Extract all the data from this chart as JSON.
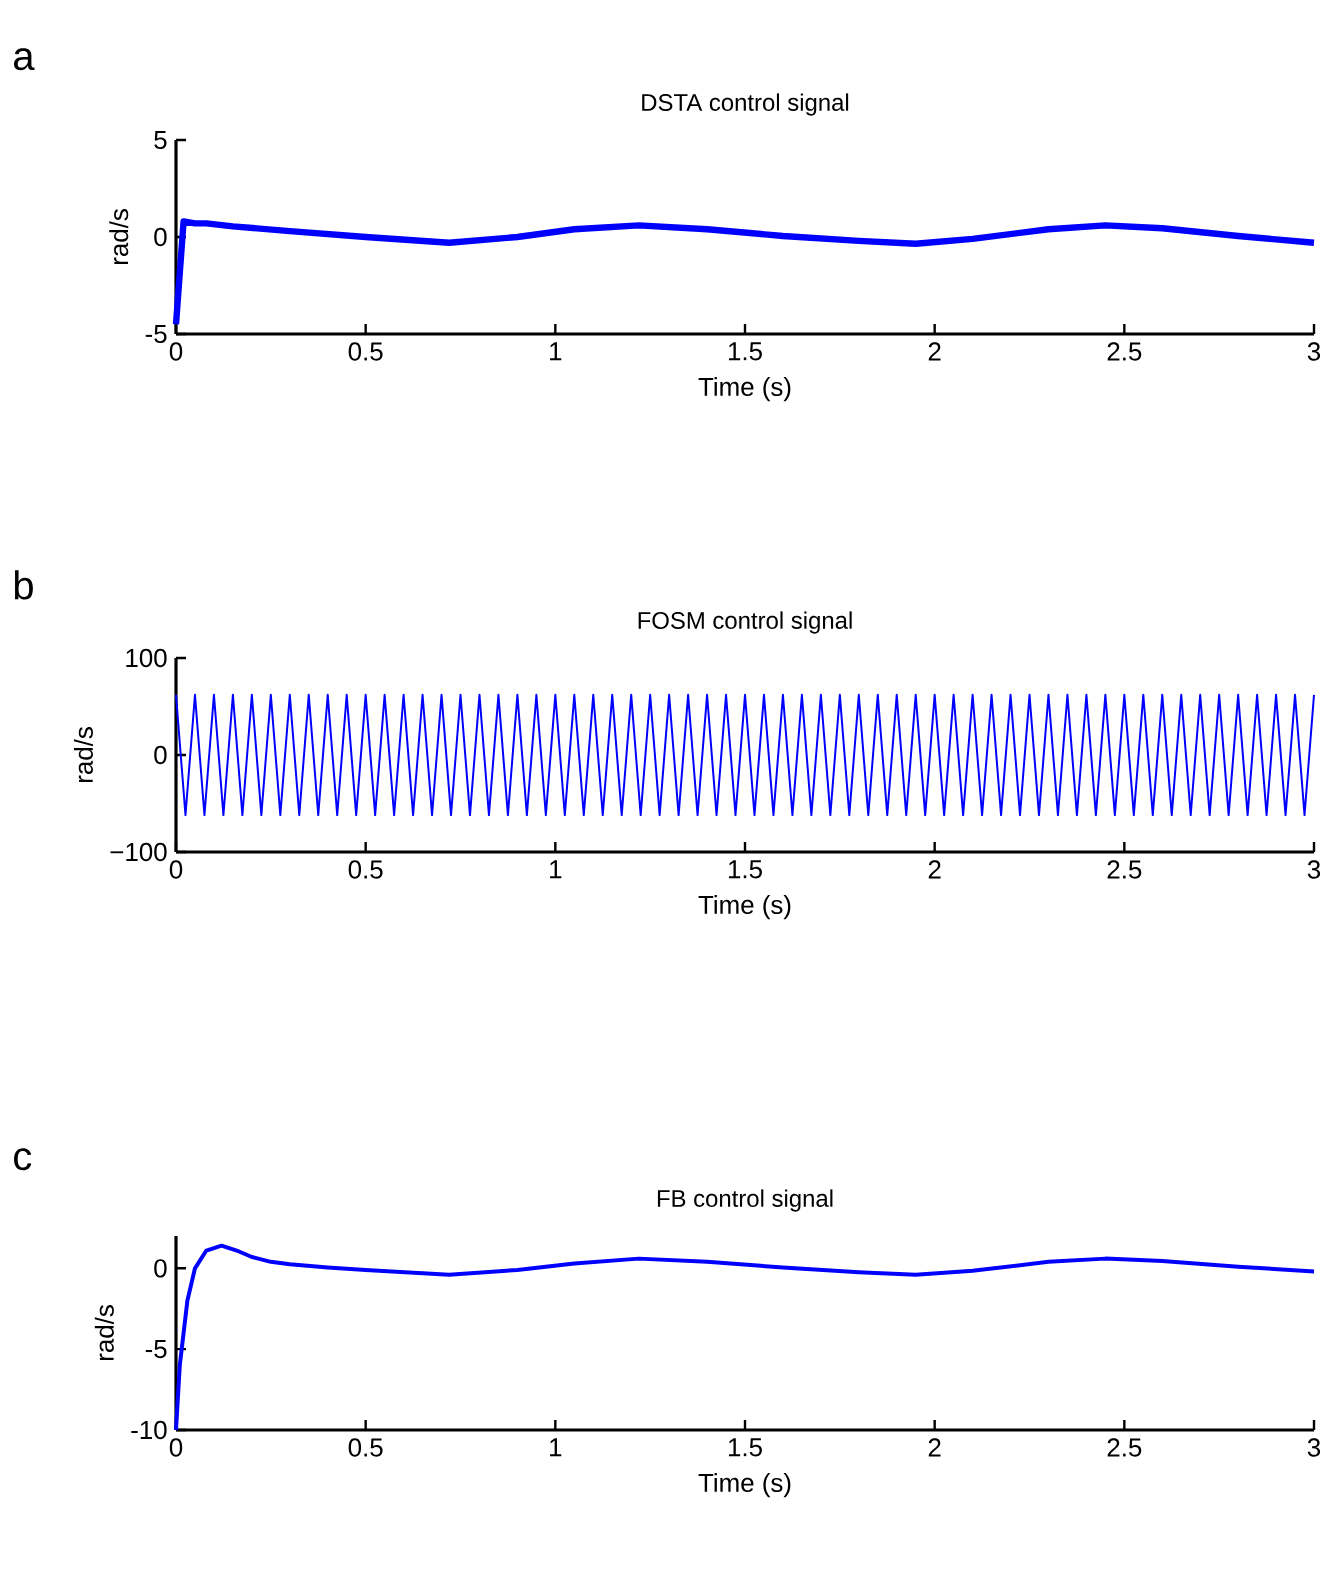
{
  "chart_data": [
    {
      "type": "line",
      "title": "DSTA control signal",
      "xlabel": "Time (s)",
      "ylabel": "rad/s",
      "annotations": [
        "a"
      ],
      "xlim": [
        0,
        3
      ],
      "ylim": [
        -5,
        5
      ],
      "xticks": [
        0,
        0.5,
        1,
        1.5,
        2,
        2.5,
        3
      ],
      "yticks": [
        -5,
        0,
        5
      ],
      "series": [
        {
          "color": "#0000ff",
          "x": [
            0,
            0.02,
            0.05,
            0.08,
            0.15,
            0.3,
            0.5,
            0.72,
            0.9,
            1.05,
            1.22,
            1.4,
            1.6,
            1.8,
            1.95,
            2.1,
            2.3,
            2.45,
            2.6,
            2.8,
            3
          ],
          "values": [
            -4.5,
            0.8,
            0.7,
            0.7,
            0.55,
            0.3,
            0,
            -0.3,
            0,
            0.4,
            0.6,
            0.4,
            0.05,
            -0.2,
            -0.35,
            -0.1,
            0.4,
            0.6,
            0.45,
            0.05,
            -0.3
          ]
        }
      ]
    },
    {
      "type": "line",
      "title": "FOSM control signal",
      "xlabel": "Time (s)",
      "ylabel": "rad/s",
      "annotations": [
        "b"
      ],
      "xlim": [
        0,
        3
      ],
      "ylim": [
        -100,
        100
      ],
      "xticks": [
        0,
        0.5,
        1,
        1.5,
        2,
        2.5,
        3
      ],
      "yticks": [
        {
          "value": -100,
          "label": "−100"
        },
        0,
        100
      ],
      "series": [
        {
          "color": "#0000ff",
          "x": [
            0,
            0.025,
            0.05,
            0.075,
            0.1,
            0.125,
            0.15,
            0.175,
            0.2,
            0.225,
            0.25,
            0.275,
            0.3,
            0.325,
            0.35,
            0.375,
            0.4,
            0.425,
            0.45,
            0.475,
            0.5,
            0.525,
            0.55,
            0.575,
            0.6,
            0.625,
            0.65,
            0.675,
            0.7,
            0.725,
            0.75,
            0.775,
            0.8,
            0.825,
            0.85,
            0.875,
            0.9,
            0.925,
            0.95,
            0.975,
            1,
            1.025,
            1.05,
            1.075,
            1.1,
            1.125,
            1.15,
            1.175,
            1.2,
            1.225,
            1.25,
            1.275,
            1.3,
            1.325,
            1.35,
            1.375,
            1.4,
            1.425,
            1.45,
            1.475,
            1.5,
            1.525,
            1.55,
            1.575,
            1.6,
            1.625,
            1.65,
            1.675,
            1.7,
            1.725,
            1.75,
            1.775,
            1.8,
            1.825,
            1.85,
            1.875,
            1.9,
            1.925,
            1.95,
            1.975,
            2,
            2.025,
            2.05,
            2.075,
            2.1,
            2.125,
            2.15,
            2.175,
            2.2,
            2.225,
            2.25,
            2.275,
            2.3,
            2.325,
            2.35,
            2.375,
            2.4,
            2.425,
            2.45,
            2.475,
            2.5,
            2.525,
            2.55,
            2.575,
            2.6,
            2.625,
            2.65,
            2.675,
            2.7,
            2.725,
            2.75,
            2.775,
            2.8,
            2.825,
            2.85,
            2.875,
            2.9,
            2.925,
            2.95,
            2.975,
            3
          ],
          "values": [
            62,
            -62,
            62,
            -62,
            62,
            -62,
            62,
            -62,
            62,
            -62,
            62,
            -62,
            62,
            -62,
            62,
            -62,
            62,
            -62,
            62,
            -62,
            62,
            -62,
            62,
            -62,
            62,
            -62,
            62,
            -62,
            62,
            -62,
            62,
            -62,
            62,
            -62,
            62,
            -62,
            62,
            -62,
            62,
            -62,
            62,
            -62,
            62,
            -62,
            62,
            -62,
            62,
            -62,
            62,
            -62,
            62,
            -62,
            62,
            -62,
            62,
            -62,
            62,
            -62,
            62,
            -62,
            62,
            -62,
            62,
            -62,
            62,
            -62,
            62,
            -62,
            62,
            -62,
            62,
            -62,
            62,
            -62,
            62,
            -62,
            62,
            -62,
            62,
            -62,
            62,
            -62,
            62,
            -62,
            62,
            -62,
            62,
            -62,
            62,
            -62,
            62,
            -62,
            62,
            -62,
            62,
            -62,
            62,
            -62,
            62,
            -62,
            62,
            -62,
            62,
            -62,
            62,
            -62,
            62,
            -62,
            62,
            -62,
            62,
            -62,
            62,
            -62,
            62,
            -62,
            62,
            -62,
            62,
            -62,
            62
          ]
        }
      ]
    },
    {
      "type": "line",
      "title": "FB control signal",
      "xlabel": "Time (s)",
      "ylabel": "rad/s",
      "annotations": [
        "c"
      ],
      "xlim": [
        0,
        3
      ],
      "ylim": [
        -10,
        2
      ],
      "xticks": [
        0,
        0.5,
        1,
        1.5,
        2,
        2.5,
        3
      ],
      "yticks": [
        -10,
        -5,
        0
      ],
      "series": [
        {
          "color": "#0000ff",
          "x": [
            0,
            0.01,
            0.03,
            0.05,
            0.08,
            0.12,
            0.16,
            0.2,
            0.25,
            0.3,
            0.4,
            0.5,
            0.72,
            0.9,
            1.05,
            1.22,
            1.4,
            1.6,
            1.8,
            1.95,
            2.1,
            2.3,
            2.45,
            2.6,
            2.8,
            3
          ],
          "values": [
            -10,
            -6,
            -2,
            0,
            1.1,
            1.4,
            1.1,
            0.7,
            0.4,
            0.25,
            0.05,
            -0.1,
            -0.4,
            -0.1,
            0.3,
            0.6,
            0.4,
            0.05,
            -0.25,
            -0.4,
            -0.15,
            0.4,
            0.6,
            0.45,
            0.1,
            -0.2
          ]
        }
      ]
    }
  ]
}
